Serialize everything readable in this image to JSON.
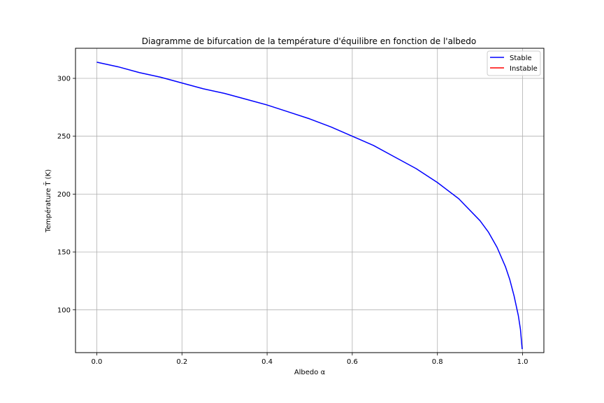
{
  "chart_data": {
    "type": "line",
    "title": "Diagramme de bifurcation de la température d'équilibre en fonction de l'albedo",
    "xlabel": "Albedo α",
    "ylabel": "Température T̄ (K)",
    "xlim": [
      -0.05,
      1.05
    ],
    "ylim": [
      63,
      326
    ],
    "xticks": [
      0.0,
      0.2,
      0.4,
      0.6,
      0.8,
      1.0
    ],
    "xtick_labels": [
      "0.0",
      "0.2",
      "0.4",
      "0.6",
      "0.8",
      "1.0"
    ],
    "yticks": [
      100,
      150,
      200,
      250,
      300
    ],
    "ytick_labels": [
      "100",
      "150",
      "200",
      "250",
      "300"
    ],
    "grid": true,
    "legend_position": "top-right",
    "series": [
      {
        "name": "Stable",
        "color": "#0000ff",
        "x": [
          0.0,
          0.05,
          0.1,
          0.15,
          0.2,
          0.25,
          0.3,
          0.35,
          0.4,
          0.45,
          0.5,
          0.55,
          0.6,
          0.65,
          0.7,
          0.75,
          0.8,
          0.85,
          0.9,
          0.92,
          0.94,
          0.96,
          0.97,
          0.98,
          0.99,
          0.995,
          0.999
        ],
        "y": [
          314,
          310,
          305,
          301,
          296,
          291,
          287,
          282,
          277,
          271,
          265,
          258,
          250,
          242,
          232,
          222,
          210,
          196,
          177,
          167,
          154,
          137,
          126,
          112,
          95,
          83,
          66
        ]
      },
      {
        "name": "Instable",
        "color": "#ff0000",
        "x": [],
        "y": []
      }
    ]
  }
}
